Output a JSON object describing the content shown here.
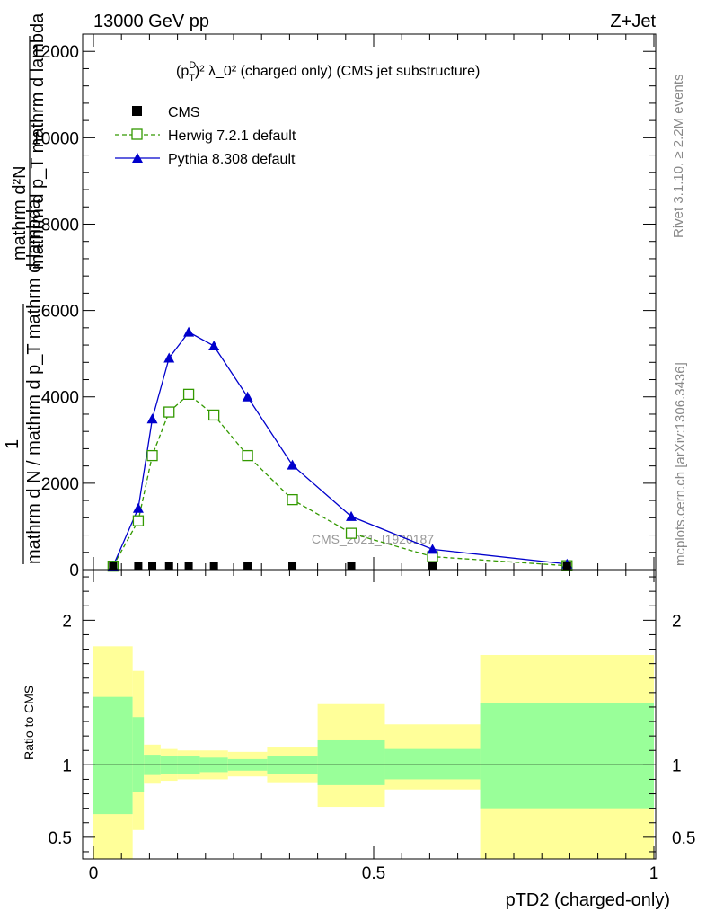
{
  "header": {
    "left": "13000 GeV pp",
    "right": "Z+Jet"
  },
  "side_labels": {
    "rivet": "Rivet 3.1.10, ≥ 2.2M events",
    "mcplots": "mcplots.cern.ch [arXiv:1306.3436]"
  },
  "watermark": "CMS_2021_I1920187",
  "chart_data": [
    {
      "type": "line",
      "title_parts": {
        "p": "(p",
        "sup1": "D",
        "sub1": "T",
        "rest": ")² λ_0² (charged only) (CMS jet substructure)"
      },
      "ylabel": {
        "numer": "mathrm d²N",
        "denom": "mathrm d p_T mathrm d lambda",
        "bottom": "mathrm d N / mathrm d p_T mathrm d lambda",
        "one": "1"
      },
      "xlabel": "pTD2 (charged-only)",
      "xlim": [
        0,
        1
      ],
      "ylim": [
        0,
        12400
      ],
      "y_ticks": [
        0,
        2000,
        4000,
        6000,
        8000,
        10000,
        12000
      ],
      "y_tick_labels": [
        "0",
        "2000",
        "4000",
        "6000",
        "8000",
        "10000",
        "12000"
      ],
      "x_ticks": [
        0,
        0.5,
        1
      ],
      "x_tick_labels": [
        "0",
        "0.5",
        "1"
      ],
      "legend": {
        "position": "top-left",
        "entries": [
          "CMS",
          "Herwig 7.2.1 default",
          "Pythia 8.308 default"
        ]
      },
      "series": [
        {
          "name": "CMS",
          "color": "#000000",
          "x": [
            0.035,
            0.08,
            0.105,
            0.135,
            0.17,
            0.215,
            0.275,
            0.355,
            0.46,
            0.605,
            0.845
          ],
          "values": [
            10,
            10,
            10,
            10,
            10,
            10,
            10,
            10,
            10,
            10,
            10
          ]
        },
        {
          "name": "Herwig 7.2.1 default",
          "color": "#339900",
          "x": [
            0.035,
            0.08,
            0.105,
            0.135,
            0.17,
            0.215,
            0.275,
            0.355,
            0.46,
            0.605,
            0.845
          ],
          "values": [
            80,
            1130,
            2640,
            3650,
            4060,
            3580,
            2640,
            1620,
            840,
            300,
            90
          ]
        },
        {
          "name": "Pythia 8.308 default",
          "color": "#0000cc",
          "x": [
            0.035,
            0.08,
            0.105,
            0.135,
            0.17,
            0.215,
            0.275,
            0.355,
            0.46,
            0.605,
            0.845
          ],
          "values": [
            80,
            1420,
            3490,
            4900,
            5500,
            5180,
            4000,
            2420,
            1230,
            470,
            130
          ]
        }
      ]
    },
    {
      "type": "area",
      "ylabel": "Ratio to CMS",
      "xlim": [
        0,
        1
      ],
      "ylim": [
        0.35,
        2.35
      ],
      "y_ticks": [
        0.5,
        1,
        2
      ],
      "y_tick_labels": [
        "0.5",
        "1",
        "2"
      ],
      "x_ticks": [
        0,
        0.5,
        1
      ],
      "x_tick_labels": [
        "0",
        "0.5",
        "1"
      ],
      "reference_line": 1,
      "bands": {
        "outer_color": "#ffff99",
        "inner_color": "#99ff99",
        "bins": [
          {
            "x0": 0.0,
            "x1": 0.07,
            "outer_lo": 0.0,
            "outer_hi": 1.82,
            "inner_lo": 0.66,
            "inner_hi": 1.47
          },
          {
            "x0": 0.07,
            "x1": 0.09,
            "outer_lo": 0.55,
            "outer_hi": 1.65,
            "inner_lo": 0.81,
            "inner_hi": 1.33
          },
          {
            "x0": 0.09,
            "x1": 0.12,
            "outer_lo": 0.87,
            "outer_hi": 1.14,
            "inner_lo": 0.93,
            "inner_hi": 1.07
          },
          {
            "x0": 0.12,
            "x1": 0.15,
            "outer_lo": 0.89,
            "outer_hi": 1.11,
            "inner_lo": 0.94,
            "inner_hi": 1.06
          },
          {
            "x0": 0.15,
            "x1": 0.19,
            "outer_lo": 0.9,
            "outer_hi": 1.1,
            "inner_lo": 0.94,
            "inner_hi": 1.06
          },
          {
            "x0": 0.19,
            "x1": 0.24,
            "outer_lo": 0.9,
            "outer_hi": 1.1,
            "inner_lo": 0.95,
            "inner_hi": 1.05
          },
          {
            "x0": 0.24,
            "x1": 0.31,
            "outer_lo": 0.92,
            "outer_hi": 1.09,
            "inner_lo": 0.96,
            "inner_hi": 1.04
          },
          {
            "x0": 0.31,
            "x1": 0.4,
            "outer_lo": 0.88,
            "outer_hi": 1.12,
            "inner_lo": 0.94,
            "inner_hi": 1.06
          },
          {
            "x0": 0.4,
            "x1": 0.52,
            "outer_lo": 0.71,
            "outer_hi": 1.42,
            "inner_lo": 0.86,
            "inner_hi": 1.17
          },
          {
            "x0": 0.52,
            "x1": 0.69,
            "outer_lo": 0.83,
            "outer_hi": 1.28,
            "inner_lo": 0.9,
            "inner_hi": 1.11
          },
          {
            "x0": 0.69,
            "x1": 1.0,
            "outer_lo": 0.35,
            "outer_hi": 1.76,
            "inner_lo": 0.7,
            "inner_hi": 1.43
          }
        ]
      }
    }
  ]
}
